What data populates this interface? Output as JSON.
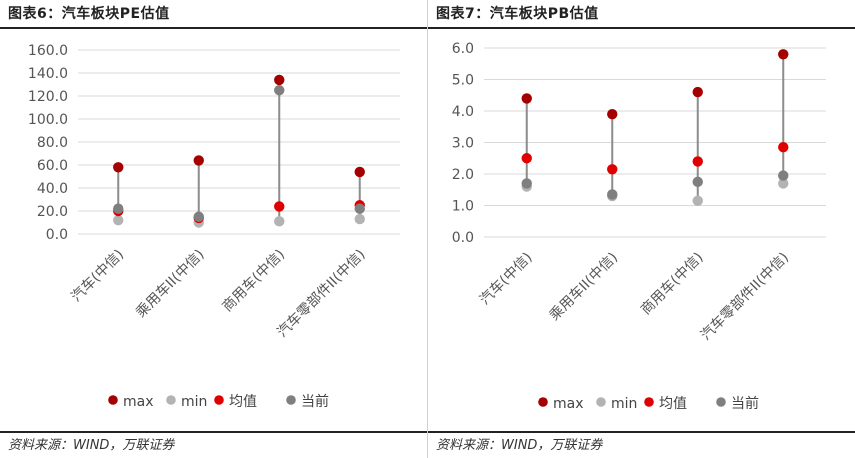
{
  "chart_data": [
    {
      "type": "scatter",
      "title": "图表6：汽车板块PE估值",
      "source": "资料来源：WIND，万联证券",
      "categories": [
        "汽车(中信)",
        "乘用车II(中信)",
        "商用车(中信)",
        "汽车零部件II(中信)"
      ],
      "ylim": [
        0,
        160
      ],
      "yticks": [
        "0.0",
        "20.0",
        "40.0",
        "60.0",
        "80.0",
        "100.0",
        "120.0",
        "140.0",
        "160.0"
      ],
      "grid": true,
      "legend_position": "bottom",
      "series": [
        {
          "name": "max",
          "color": "#a50000",
          "values": [
            58,
            64,
            134,
            54
          ]
        },
        {
          "name": "min",
          "color": "#b3b3b3",
          "values": [
            12,
            10,
            11,
            13
          ]
        },
        {
          "name": "均值",
          "color": "#e00000",
          "values": [
            20,
            14,
            24,
            25
          ]
        },
        {
          "name": "当前",
          "color": "#7f7f7f",
          "values": [
            22,
            15,
            125,
            22
          ]
        }
      ]
    },
    {
      "type": "scatter",
      "title": "图表7：汽车板块PB估值",
      "source": "资料来源：WIND，万联证券",
      "categories": [
        "汽车(中信)",
        "乘用车II(中信)",
        "商用车(中信)",
        "汽车零部件II(中信)"
      ],
      "ylim": [
        0,
        6
      ],
      "yticks": [
        "0.0",
        "1.0",
        "2.0",
        "3.0",
        "4.0",
        "5.0",
        "6.0"
      ],
      "grid": true,
      "legend_position": "bottom",
      "series": [
        {
          "name": "max",
          "color": "#a50000",
          "values": [
            4.4,
            3.9,
            4.6,
            5.8
          ]
        },
        {
          "name": "min",
          "color": "#b3b3b3",
          "values": [
            1.6,
            1.3,
            1.15,
            1.7
          ]
        },
        {
          "name": "均值",
          "color": "#e00000",
          "values": [
            2.5,
            2.15,
            2.4,
            2.85
          ]
        },
        {
          "name": "当前",
          "color": "#7f7f7f",
          "values": [
            1.7,
            1.35,
            1.75,
            1.95
          ]
        }
      ]
    }
  ]
}
